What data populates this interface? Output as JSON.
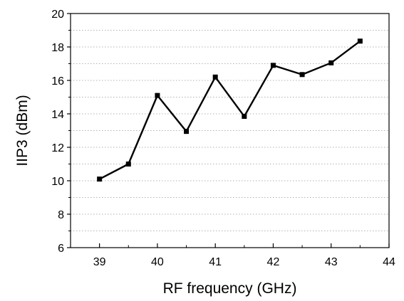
{
  "chart_data": {
    "type": "line",
    "title": "",
    "xlabel": "RF frequency (GHz)",
    "ylabel": "IIP3 (dBm)",
    "xlim": [
      38.5,
      44
    ],
    "ylim": [
      6,
      20
    ],
    "xticks": [
      39,
      40,
      41,
      42,
      43,
      44
    ],
    "yticks": [
      6,
      8,
      10,
      12,
      14,
      16,
      18,
      20
    ],
    "minor_grid_y": [
      7,
      9,
      11,
      13,
      15,
      17,
      19
    ],
    "grid": true,
    "grid_style": "dotted horizontal",
    "legend": "none",
    "line_color": "#000000",
    "marker": "square",
    "series": [
      {
        "x": [
          39,
          39.5,
          40,
          40.5,
          41,
          41.5,
          42,
          42.5,
          43,
          43.5
        ],
        "y": [
          10.1,
          11.0,
          15.1,
          12.95,
          16.2,
          13.85,
          16.9,
          16.35,
          17.05,
          18.35
        ]
      }
    ]
  }
}
